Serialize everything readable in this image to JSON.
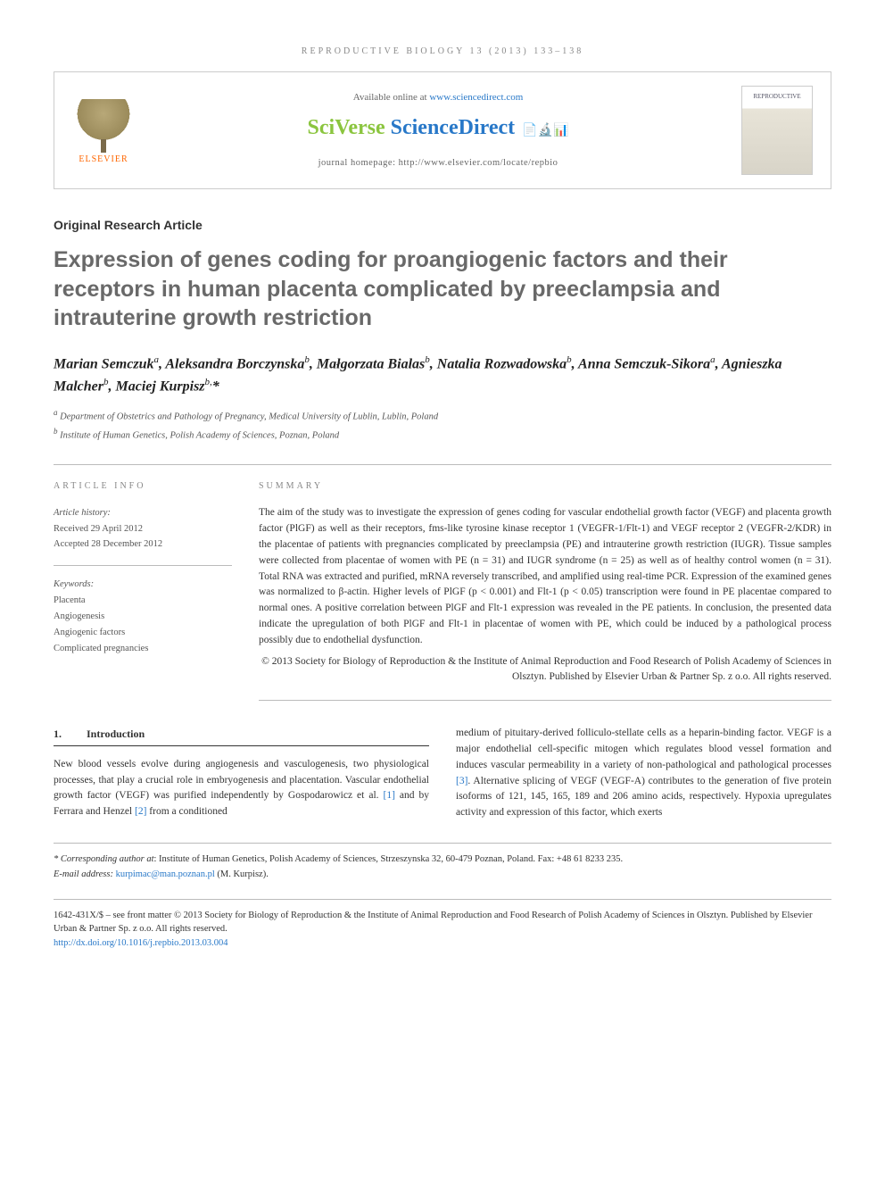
{
  "running_head": "REPRODUCTIVE BIOLOGY 13 (2013) 133–138",
  "header": {
    "elsevier": "ELSEVIER",
    "available": "Available online at ",
    "available_url": "www.sciencedirect.com",
    "logo_sv": "SciVerse ",
    "logo_sd": "ScienceDirect",
    "journal_homepage": "journal homepage: http://www.elsevier.com/locate/repbio",
    "cover_text": "REPRODUCTIVE"
  },
  "article_type": "Original Research Article",
  "title": "Expression of genes coding for proangiogenic factors and their receptors in human placenta complicated by preeclampsia and intrauterine growth restriction",
  "authors_html": "Marian Semczuk<sup>a</sup>, Aleksandra Borczynska<sup>b</sup>, Małgorzata Bialas<sup>b</sup>, Natalia Rozwadowska<sup>b</sup>, Anna Semczuk-Sikora<sup>a</sup>, Agnieszka Malcher<sup>b</sup>, Maciej Kurpisz<sup>b,</sup>*",
  "affiliations": [
    {
      "sup": "a",
      "text": "Department of Obstetrics and Pathology of Pregnancy, Medical University of Lublin, Lublin, Poland"
    },
    {
      "sup": "b",
      "text": "Institute of Human Genetics, Polish Academy of Sciences, Poznan, Poland"
    }
  ],
  "info": {
    "heading": "ARTICLE INFO",
    "history_label": "Article history:",
    "received": "Received 29 April 2012",
    "accepted": "Accepted 28 December 2012",
    "keywords_label": "Keywords:",
    "keywords": [
      "Placenta",
      "Angiogenesis",
      "Angiogenic factors",
      "Complicated pregnancies"
    ]
  },
  "summary": {
    "heading": "SUMMARY",
    "text": "The aim of the study was to investigate the expression of genes coding for vascular endothelial growth factor (VEGF) and placenta growth factor (PlGF) as well as their receptors, fms-like tyrosine kinase receptor 1 (VEGFR-1/Flt-1) and VEGF receptor 2 (VEGFR-2/KDR) in the placentae of patients with pregnancies complicated by preeclampsia (PE) and intrauterine growth restriction (IUGR). Tissue samples were collected from placentae of women with PE (n = 31) and IUGR syndrome (n = 25) as well as of healthy control women (n = 31). Total RNA was extracted and purified, mRNA reversely transcribed, and amplified using real-time PCR. Expression of the examined genes was normalized to β-actin. Higher levels of PlGF (p < 0.001) and Flt-1 (p < 0.05) transcription were found in PE placentae compared to normal ones. A positive correlation between PlGF and Flt-1 expression was revealed in the PE patients. In conclusion, the presented data indicate the upregulation of both PlGF and Flt-1 in placentae of women with PE, which could be induced by a pathological process possibly due to endothelial dysfunction.",
    "copyright": "© 2013 Society for Biology of Reproduction & the Institute of Animal Reproduction and Food Research of Polish Academy of Sciences in Olsztyn. Published by Elsevier Urban & Partner Sp. z o.o. All rights reserved."
  },
  "section1": {
    "num": "1.",
    "heading": "Introduction",
    "col1": "New blood vessels evolve during angiogenesis and vasculogenesis, two physiological processes, that play a crucial role in embryogenesis and placentation. Vascular endothelial growth factor (VEGF) was purified independently by Gospodarowicz et al. [1] and by Ferrara and Henzel [2] from a conditioned",
    "col2": "medium of pituitary-derived folliculo-stellate cells as a heparin-binding factor. VEGF is a major endothelial cell-specific mitogen which regulates blood vessel formation and induces vascular permeability in a variety of non-pathological and pathological processes [3]. Alternative splicing of VEGF (VEGF-A) contributes to the generation of five protein isoforms of 121, 145, 165, 189 and 206 amino acids, respectively. Hypoxia upregulates activity and expression of this factor, which exerts"
  },
  "refs": {
    "r1": "[1]",
    "r2": "[2]",
    "r3": "[3]"
  },
  "footnotes": {
    "corr_label": "* Corresponding author at",
    "corr_text": ": Institute of Human Genetics, Polish Academy of Sciences, Strzeszynska 32, 60-479 Poznan, Poland. Fax: +48 61 8233 235.",
    "email_label": "E-mail address:",
    "email": "kurpimac@man.poznan.pl",
    "email_suffix": " (M. Kurpisz)."
  },
  "bottom": {
    "issn": "1642-431X/$ – see front matter © 2013 Society for Biology of Reproduction & the Institute of Animal Reproduction and Food Research of Polish Academy of Sciences in Olsztyn. Published by Elsevier Urban & Partner Sp. z o.o. All rights reserved.",
    "doi": "http://dx.doi.org/10.1016/j.repbio.2013.03.004"
  }
}
